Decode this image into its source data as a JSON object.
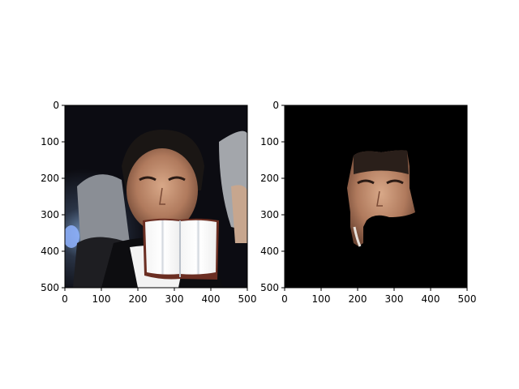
{
  "chart_data": [
    {
      "type": "image",
      "xlim": [
        0,
        500
      ],
      "ylim": [
        500,
        0
      ],
      "xticks": [
        0,
        100,
        200,
        300,
        400,
        500
      ],
      "yticks": [
        0,
        100,
        200,
        300,
        400,
        500
      ],
      "grid": false,
      "content": "photo of a man with dark hair in a black tuxedo, with an open book image overlapping his lower face and shirt",
      "overlay": {
        "icon": "open-book-icon",
        "x_range": [
          215,
          425
        ],
        "y_range": [
          315,
          460
        ]
      }
    },
    {
      "type": "image",
      "xlim": [
        0,
        500
      ],
      "ylim": [
        500,
        0
      ],
      "xticks": [
        0,
        100,
        200,
        300,
        400,
        500
      ],
      "yticks": [
        0,
        100,
        200,
        300,
        400,
        500
      ],
      "grid": false,
      "content": "segmented face region on black background"
    }
  ],
  "colors": {
    "background": "#000000",
    "axes": "#000000"
  }
}
